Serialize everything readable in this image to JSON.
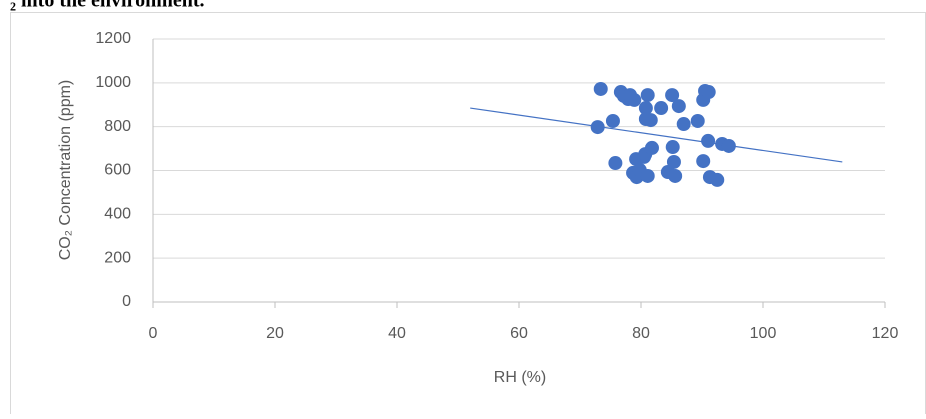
{
  "page_text": "₂ into the environment.",
  "chart_data": {
    "type": "scatter",
    "xlabel": "RH (%)",
    "ylabel": "CO₂ Concentration (ppm)",
    "x": [
      73.4,
      72.9,
      75.4,
      75.8,
      76.7,
      77.2,
      77.9,
      78.2,
      78.9,
      79.2,
      78.7,
      79.3,
      79.8,
      80.5,
      80.7,
      81.1,
      80.8,
      80.8,
      81.6,
      81.1,
      81.8,
      83.3,
      85.1,
      86.2,
      85.2,
      84.4,
      85.4,
      85.6,
      87.0,
      89.3,
      90.2,
      90.5,
      91.1,
      91.0,
      91.3,
      92.5,
      93.3,
      94.4,
      90.2
    ],
    "values": [
      972,
      798,
      826,
      634,
      958,
      940,
      926,
      944,
      922,
      652,
      589,
      570,
      602,
      662,
      675,
      944,
      885,
      835,
      830,
      575,
      703,
      885,
      944,
      894,
      707,
      593,
      639,
      575,
      812,
      826,
      922,
      963,
      958,
      735,
      570,
      557,
      721,
      712,
      643
    ],
    "color": "#4472c4",
    "trendline": {
      "x": [
        52,
        113
      ],
      "values": [
        885,
        639
      ]
    },
    "xlim": [
      0,
      120
    ],
    "xticks": [
      0,
      20,
      40,
      60,
      80,
      100,
      120
    ],
    "ylim": [
      0,
      1200
    ],
    "yticks": [
      0,
      200,
      400,
      600,
      800,
      1000,
      1200
    ],
    "grid": true
  }
}
